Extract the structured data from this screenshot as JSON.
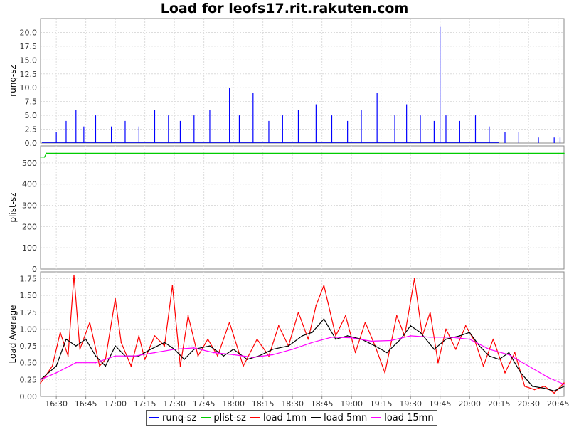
{
  "chart_data": {
    "type": "line",
    "title": "Load for leofs17.rit.rakuten.com",
    "x_ticks": [
      "16:30",
      "16:45",
      "17:00",
      "17:15",
      "17:30",
      "17:45",
      "18:00",
      "18:15",
      "18:30",
      "18:45",
      "19:00",
      "19:15",
      "19:30",
      "19:45",
      "20:00",
      "20:15",
      "20:30",
      "20:45"
    ],
    "x_range": [
      "16:22",
      "20:48"
    ],
    "grid": true,
    "legend_placement": "bottom",
    "panels": [
      {
        "ylabel": "runq-sz",
        "ylim": [
          0,
          22.5
        ],
        "y_ticks": [
          "0.0",
          "2.5",
          "5.0",
          "7.5",
          "10.0",
          "12.5",
          "15.0",
          "17.5",
          "20.0"
        ],
        "series": [
          {
            "name": "runq-sz",
            "color": "#0000ff",
            "style": "spikes",
            "points": [
              [
                "16:30",
                2
              ],
              [
                "16:35",
                4
              ],
              [
                "16:40",
                6
              ],
              [
                "16:44",
                3
              ],
              [
                "16:50",
                5
              ],
              [
                "16:58",
                3
              ],
              [
                "17:05",
                4
              ],
              [
                "17:12",
                3
              ],
              [
                "17:20",
                6
              ],
              [
                "17:27",
                5
              ],
              [
                "17:33",
                4
              ],
              [
                "17:40",
                5
              ],
              [
                "17:48",
                6
              ],
              [
                "17:58",
                10
              ],
              [
                "18:03",
                5
              ],
              [
                "18:10",
                9
              ],
              [
                "18:18",
                4
              ],
              [
                "18:25",
                5
              ],
              [
                "18:33",
                6
              ],
              [
                "18:42",
                7
              ],
              [
                "18:50",
                5
              ],
              [
                "18:58",
                4
              ],
              [
                "19:05",
                6
              ],
              [
                "19:13",
                9
              ],
              [
                "19:22",
                5
              ],
              [
                "19:28",
                7
              ],
              [
                "19:35",
                5
              ],
              [
                "19:42",
                4
              ],
              [
                "19:45",
                21
              ],
              [
                "19:48",
                5
              ],
              [
                "19:55",
                4
              ],
              [
                "20:03",
                5
              ],
              [
                "20:10",
                3
              ],
              [
                "20:18",
                2
              ],
              [
                "20:25",
                2
              ],
              [
                "20:35",
                1
              ],
              [
                "20:43",
                1
              ],
              [
                "20:46",
                1
              ]
            ]
          }
        ]
      },
      {
        "ylabel": "plist-sz",
        "ylim": [
          0,
          580
        ],
        "y_ticks": [
          "0",
          "100",
          "200",
          "300",
          "400",
          "500"
        ],
        "series": [
          {
            "name": "plist-sz",
            "color": "#00cc00",
            "style": "line",
            "points": [
              [
                "16:22",
                527
              ],
              [
                "16:24",
                527
              ],
              [
                "16:25",
                545
              ],
              [
                "20:48",
                545
              ]
            ]
          }
        ]
      },
      {
        "ylabel": "Load Average",
        "ylim": [
          0,
          1.85
        ],
        "y_ticks": [
          "0.00",
          "0.25",
          "0.50",
          "0.75",
          "1.00",
          "1.25",
          "1.50",
          "1.75"
        ],
        "series": [
          {
            "name": "load 1mn",
            "color": "#ff0000",
            "style": "line",
            "points": [
              [
                "16:22",
                0.2
              ],
              [
                "16:28",
                0.45
              ],
              [
                "16:32",
                0.95
              ],
              [
                "16:36",
                0.6
              ],
              [
                "16:39",
                1.8
              ],
              [
                "16:42",
                0.7
              ],
              [
                "16:47",
                1.1
              ],
              [
                "16:52",
                0.45
              ],
              [
                "16:55",
                0.55
              ],
              [
                "17:00",
                1.45
              ],
              [
                "17:03",
                0.8
              ],
              [
                "17:08",
                0.45
              ],
              [
                "17:12",
                0.9
              ],
              [
                "17:15",
                0.55
              ],
              [
                "17:20",
                0.9
              ],
              [
                "17:25",
                0.75
              ],
              [
                "17:29",
                1.65
              ],
              [
                "17:33",
                0.45
              ],
              [
                "17:37",
                1.2
              ],
              [
                "17:42",
                0.6
              ],
              [
                "17:47",
                0.85
              ],
              [
                "17:52",
                0.6
              ],
              [
                "17:58",
                1.1
              ],
              [
                "18:05",
                0.45
              ],
              [
                "18:12",
                0.85
              ],
              [
                "18:18",
                0.6
              ],
              [
                "18:23",
                1.05
              ],
              [
                "18:28",
                0.75
              ],
              [
                "18:33",
                1.25
              ],
              [
                "18:38",
                0.85
              ],
              [
                "18:42",
                1.35
              ],
              [
                "18:46",
                1.65
              ],
              [
                "18:52",
                0.9
              ],
              [
                "18:57",
                1.2
              ],
              [
                "19:02",
                0.65
              ],
              [
                "19:07",
                1.1
              ],
              [
                "19:12",
                0.75
              ],
              [
                "19:17",
                0.35
              ],
              [
                "19:23",
                1.2
              ],
              [
                "19:27",
                0.9
              ],
              [
                "19:32",
                1.75
              ],
              [
                "19:36",
                0.9
              ],
              [
                "19:40",
                1.25
              ],
              [
                "19:44",
                0.5
              ],
              [
                "19:48",
                1.0
              ],
              [
                "19:53",
                0.7
              ],
              [
                "19:58",
                1.05
              ],
              [
                "20:03",
                0.8
              ],
              [
                "20:07",
                0.45
              ],
              [
                "20:12",
                0.85
              ],
              [
                "20:18",
                0.35
              ],
              [
                "20:23",
                0.65
              ],
              [
                "20:28",
                0.15
              ],
              [
                "20:33",
                0.1
              ],
              [
                "20:38",
                0.15
              ],
              [
                "20:43",
                0.05
              ],
              [
                "20:48",
                0.2
              ]
            ]
          },
          {
            "name": "load 5mn",
            "color": "#000000",
            "style": "line",
            "points": [
              [
                "16:22",
                0.25
              ],
              [
                "16:30",
                0.45
              ],
              [
                "16:35",
                0.85
              ],
              [
                "16:40",
                0.75
              ],
              [
                "16:45",
                0.85
              ],
              [
                "16:50",
                0.6
              ],
              [
                "16:55",
                0.45
              ],
              [
                "17:00",
                0.75
              ],
              [
                "17:05",
                0.6
              ],
              [
                "17:12",
                0.6
              ],
              [
                "17:18",
                0.7
              ],
              [
                "17:25",
                0.8
              ],
              [
                "17:30",
                0.7
              ],
              [
                "17:35",
                0.55
              ],
              [
                "17:40",
                0.7
              ],
              [
                "17:48",
                0.75
              ],
              [
                "17:55",
                0.6
              ],
              [
                "18:00",
                0.7
              ],
              [
                "18:07",
                0.55
              ],
              [
                "18:13",
                0.6
              ],
              [
                "18:20",
                0.7
              ],
              [
                "18:28",
                0.75
              ],
              [
                "18:35",
                0.9
              ],
              [
                "18:40",
                0.95
              ],
              [
                "18:46",
                1.15
              ],
              [
                "18:52",
                0.85
              ],
              [
                "18:58",
                0.9
              ],
              [
                "19:05",
                0.85
              ],
              [
                "19:12",
                0.75
              ],
              [
                "19:18",
                0.65
              ],
              [
                "19:25",
                0.85
              ],
              [
                "19:30",
                1.05
              ],
              [
                "19:35",
                0.95
              ],
              [
                "19:42",
                0.7
              ],
              [
                "19:48",
                0.85
              ],
              [
                "19:55",
                0.9
              ],
              [
                "20:00",
                0.95
              ],
              [
                "20:05",
                0.75
              ],
              [
                "20:10",
                0.6
              ],
              [
                "20:15",
                0.55
              ],
              [
                "20:20",
                0.65
              ],
              [
                "20:26",
                0.35
              ],
              [
                "20:32",
                0.15
              ],
              [
                "20:38",
                0.12
              ],
              [
                "20:43",
                0.08
              ],
              [
                "20:48",
                0.15
              ]
            ]
          },
          {
            "name": "load 15mn",
            "color": "#ff00ff",
            "style": "line",
            "points": [
              [
                "16:22",
                0.25
              ],
              [
                "16:30",
                0.35
              ],
              [
                "16:40",
                0.5
              ],
              [
                "16:50",
                0.5
              ],
              [
                "17:00",
                0.6
              ],
              [
                "17:10",
                0.6
              ],
              [
                "17:20",
                0.65
              ],
              [
                "17:30",
                0.7
              ],
              [
                "17:40",
                0.72
              ],
              [
                "17:50",
                0.65
              ],
              [
                "18:00",
                0.62
              ],
              [
                "18:10",
                0.58
              ],
              [
                "18:20",
                0.62
              ],
              [
                "18:30",
                0.7
              ],
              [
                "18:40",
                0.8
              ],
              [
                "18:50",
                0.88
              ],
              [
                "19:00",
                0.87
              ],
              [
                "19:10",
                0.82
              ],
              [
                "19:20",
                0.83
              ],
              [
                "19:30",
                0.9
              ],
              [
                "19:40",
                0.88
              ],
              [
                "19:50",
                0.88
              ],
              [
                "20:00",
                0.85
              ],
              [
                "20:10",
                0.7
              ],
              [
                "20:20",
                0.62
              ],
              [
                "20:30",
                0.45
              ],
              [
                "20:40",
                0.28
              ],
              [
                "20:48",
                0.18
              ]
            ]
          }
        ]
      }
    ]
  },
  "legend": {
    "items": [
      {
        "label": "runq-sz",
        "color": "#0000ff"
      },
      {
        "label": "plist-sz",
        "color": "#00cc00"
      },
      {
        "label": "load 1mn",
        "color": "#ff0000"
      },
      {
        "label": "load 5mn",
        "color": "#000000"
      },
      {
        "label": "load 15mn",
        "color": "#ff00ff"
      }
    ]
  }
}
